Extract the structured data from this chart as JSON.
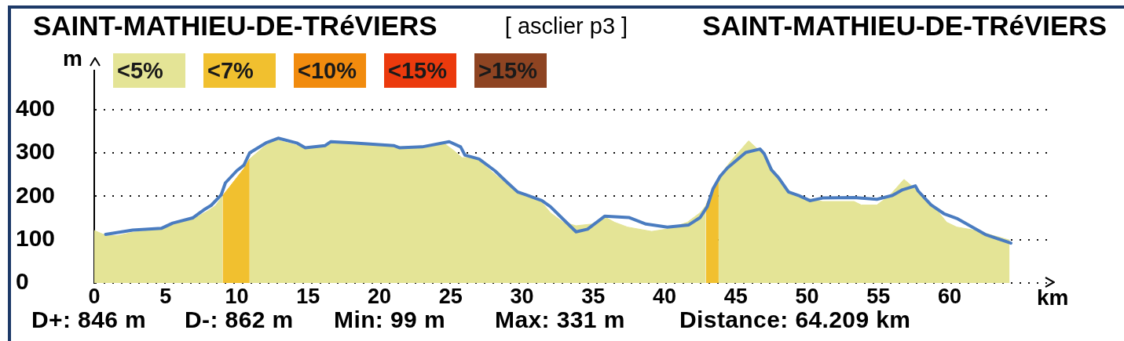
{
  "chart_data": {
    "type": "area",
    "title": "[ asclier p3 ]",
    "xlabel": "km",
    "ylabel": "m",
    "annotations": [
      "SAINT-MATHIEU-DE-TRéVIERS",
      "SAINT-MATHIEU-DE-TRéVIERS",
      "D+: 846 m",
      "D-: 862 m",
      "Min: 99 m",
      "Max: 331 m",
      "Distance: 64.209 km"
    ],
    "xlim": [
      0,
      67
    ],
    "xticks": [
      0,
      5,
      10,
      15,
      20,
      25,
      30,
      35,
      40,
      45,
      50,
      55,
      60
    ],
    "ylim": [
      0,
      490
    ],
    "yticks": [
      0,
      100,
      200,
      300,
      400
    ],
    "grid": "y",
    "legend": "top left",
    "series": [
      {
        "name": "<5%",
        "color": "#e4e496",
        "x": [
          0,
          0.8,
          1.6,
          2.7,
          4.7,
          5.5,
          7.0,
          8.0,
          8.5,
          9.0,
          10.0,
          10.9,
          11.9,
          12.7,
          14.3,
          14.9,
          16.2,
          16.6,
          18.1,
          20.9,
          21.5,
          23.0,
          24.5,
          25.2,
          25.8,
          26.6,
          27.1,
          28.2,
          29.5,
          30.3,
          31.4,
          32.0,
          32.9,
          33.8,
          34.9,
          35.9,
          36.5,
          37.4,
          39.1,
          40.3,
          41.6,
          42.5,
          42.9,
          43.3,
          43.8,
          44.6,
          45.9,
          46.8,
          47.7,
          48.8,
          49.9,
          51.1,
          53.3,
          53.8,
          54.9,
          55.8,
          56.8,
          57.6,
          58.7,
          59.8,
          60.5,
          61.9,
          63.0,
          64.209
        ],
        "values": [
          121,
          110,
          109,
          117,
          124,
          136,
          148,
          167,
          178,
          201,
          null,
          286,
          314,
          331,
          317,
          310,
          314,
          324,
          324,
          319,
          314,
          316,
          323,
          306,
          289,
          290,
          279,
          248,
          214,
          200,
          186,
          162,
          140,
          132,
          136,
          151,
          140,
          129,
          119,
          125,
          140,
          162,
          178,
          null,
          244,
          279,
          328,
          301,
          257,
          210,
          195,
          188,
          188,
          180,
          180,
          202,
          239,
          217,
          184,
          140,
          129,
          121,
          110,
          99
        ]
      },
      {
        "name": "<7%",
        "color": "#f1c02f",
        "x": [
          9.0,
          9.5,
          10.0,
          10.5,
          10.9,
          26.0,
          42.9,
          43.3,
          43.8
        ],
        "values": [
          201,
          222,
          243,
          264,
          286,
          null,
          178,
          210,
          244
        ]
      },
      {
        "name": "<10%",
        "color": "#f18b0e"
      },
      {
        "name": "<15%",
        "color": "#eb3a0d"
      },
      {
        "name": ">15%",
        "color": "#8e4422"
      },
      {
        "type": "line",
        "color": "#4a7cc0",
        "x": [
          0.8,
          2.7,
          4.7,
          5.5,
          6.9,
          7.7,
          8.2,
          8.9,
          9.2,
          10.0,
          10.5,
          10.9,
          12.1,
          12.9,
          14.2,
          14.8,
          16.2,
          16.6,
          18.1,
          21.0,
          21.4,
          23.0,
          24.9,
          25.7,
          26.0,
          27.0,
          28.1,
          29.0,
          29.7,
          30.3,
          31.4,
          32.0,
          32.9,
          33.8,
          34.6,
          35.8,
          37.5,
          38.7,
          40.2,
          41.7,
          42.5,
          43.0,
          43.4,
          43.9,
          44.4,
          45.7,
          46.7,
          47.0,
          47.5,
          48.0,
          48.7,
          49.4,
          50.2,
          51.1,
          53.3,
          54.9,
          56.0,
          56.7,
          57.6,
          57.8,
          58.7,
          59.6,
          60.5,
          61.6,
          62.5,
          64.3
        ],
        "values": [
          112,
          122,
          126,
          138,
          150,
          169,
          179,
          203,
          231,
          259,
          272,
          300,
          324,
          334,
          323,
          312,
          317,
          326,
          323,
          317,
          312,
          314,
          326,
          314,
          295,
          286,
          259,
          231,
          210,
          203,
          190,
          176,
          147,
          118,
          124,
          154,
          151,
          136,
          129,
          134,
          151,
          176,
          217,
          246,
          265,
          301,
          309,
          298,
          261,
          243,
          210,
          202,
          190,
          196,
          197,
          193,
          202,
          215,
          224,
          212,
          180,
          160,
          149,
          129,
          112,
          92
        ]
      }
    ]
  }
}
